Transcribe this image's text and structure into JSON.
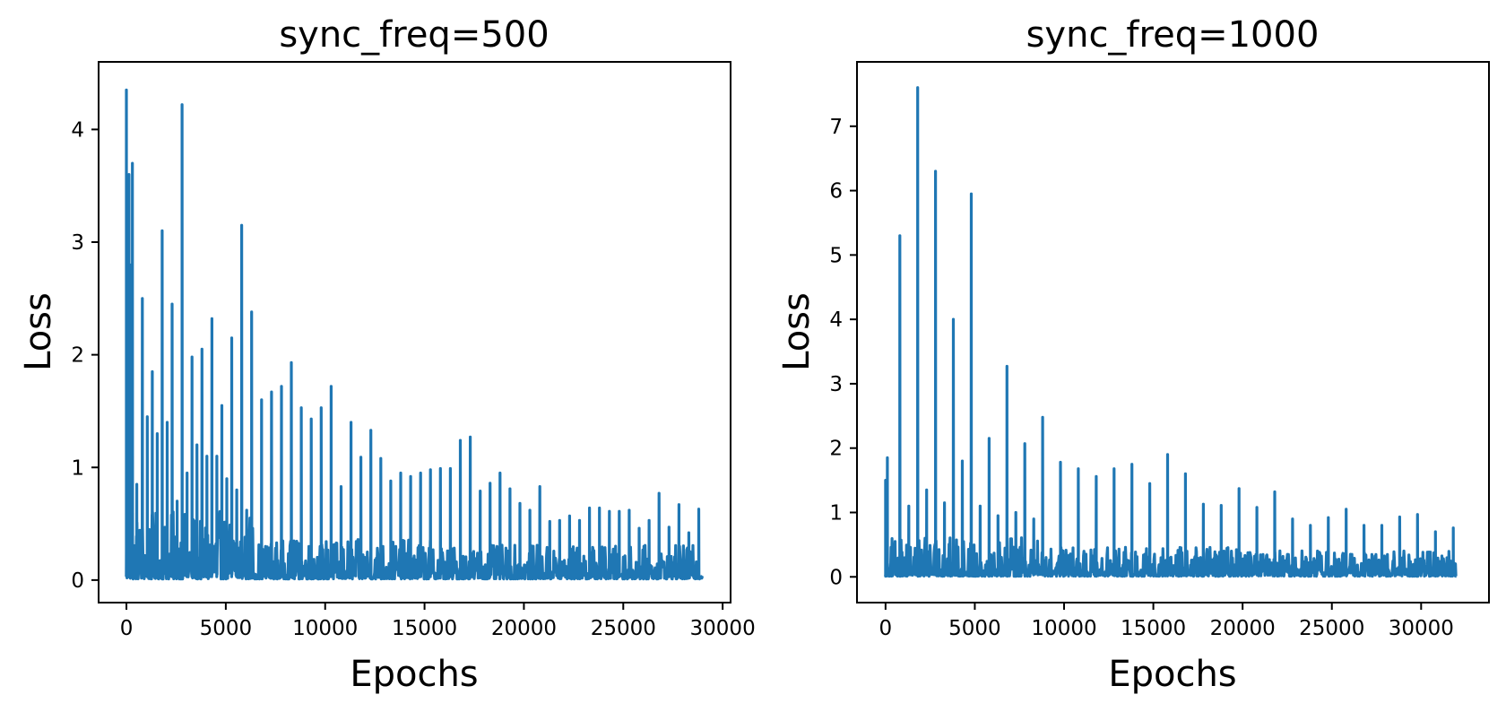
{
  "chart_data": [
    {
      "type": "line",
      "title": "sync_freq=500",
      "xlabel": "Epochs",
      "ylabel": "Loss",
      "xlim": [
        -1400,
        30400
      ],
      "ylim": [
        -0.2,
        4.6
      ],
      "xticks": [
        0,
        5000,
        10000,
        15000,
        20000,
        25000,
        30000
      ],
      "yticks": [
        0,
        1,
        2,
        3,
        4
      ],
      "grid": false,
      "color": "#1f77b4",
      "x_max": 29000,
      "sync_interval": 500,
      "spike_peaks": [
        [
          0,
          4.35
        ],
        [
          130,
          3.6
        ],
        [
          260,
          2.8
        ],
        [
          300,
          3.7
        ],
        [
          520,
          0.85
        ],
        [
          800,
          2.5
        ],
        [
          1050,
          1.45
        ],
        [
          1300,
          1.85
        ],
        [
          1550,
          1.3
        ],
        [
          1800,
          3.1
        ],
        [
          2050,
          1.4
        ],
        [
          2300,
          2.45
        ],
        [
          2550,
          0.7
        ],
        [
          2800,
          4.22
        ],
        [
          3050,
          0.95
        ],
        [
          3300,
          1.98
        ],
        [
          3550,
          1.2
        ],
        [
          3800,
          2.05
        ],
        [
          4050,
          1.1
        ],
        [
          4300,
          2.32
        ],
        [
          4550,
          1.1
        ],
        [
          4800,
          1.55
        ],
        [
          5050,
          0.9
        ],
        [
          5300,
          2.15
        ],
        [
          5550,
          0.8
        ],
        [
          5800,
          3.15
        ],
        [
          6050,
          0.62
        ],
        [
          6300,
          2.38
        ],
        [
          6800,
          1.6
        ],
        [
          7300,
          1.67
        ],
        [
          7800,
          1.72
        ],
        [
          8300,
          1.93
        ],
        [
          8800,
          1.53
        ],
        [
          9300,
          1.43
        ],
        [
          9800,
          1.53
        ],
        [
          10300,
          1.72
        ],
        [
          10800,
          0.83
        ],
        [
          11300,
          1.4
        ],
        [
          11800,
          1.09
        ],
        [
          12300,
          1.33
        ],
        [
          12800,
          1.08
        ],
        [
          13300,
          0.88
        ],
        [
          13800,
          0.95
        ],
        [
          14300,
          0.92
        ],
        [
          14800,
          0.95
        ],
        [
          15300,
          0.98
        ],
        [
          15800,
          0.99
        ],
        [
          16300,
          0.99
        ],
        [
          16800,
          1.24
        ],
        [
          17300,
          1.27
        ],
        [
          17800,
          0.79
        ],
        [
          18300,
          0.86
        ],
        [
          18800,
          0.95
        ],
        [
          19300,
          0.81
        ],
        [
          19800,
          0.68
        ],
        [
          20300,
          0.62
        ],
        [
          20800,
          0.83
        ],
        [
          21300,
          0.52
        ],
        [
          21800,
          0.53
        ],
        [
          22300,
          0.57
        ],
        [
          22800,
          0.53
        ],
        [
          23300,
          0.64
        ],
        [
          23800,
          0.64
        ],
        [
          24300,
          0.61
        ],
        [
          24800,
          0.61
        ],
        [
          25300,
          0.62
        ],
        [
          25800,
          0.46
        ],
        [
          26300,
          0.53
        ],
        [
          26800,
          0.77
        ],
        [
          27300,
          0.47
        ],
        [
          27800,
          0.67
        ],
        [
          28300,
          0.42
        ],
        [
          28800,
          0.63
        ]
      ],
      "noise_bands": [
        [
          0,
          6400,
          0.6
        ],
        [
          6400,
          16000,
          0.35
        ],
        [
          16000,
          29000,
          0.3
        ]
      ]
    },
    {
      "type": "line",
      "title": "sync_freq=1000",
      "xlabel": "Epochs",
      "ylabel": "Loss",
      "xlim": [
        -1600,
        33800
      ],
      "ylim": [
        -0.4,
        8.0
      ],
      "xticks": [
        0,
        5000,
        10000,
        15000,
        20000,
        25000,
        30000
      ],
      "yticks": [
        0,
        1,
        2,
        3,
        4,
        5,
        6,
        7
      ],
      "grid": false,
      "color": "#1f77b4",
      "x_max": 32000,
      "sync_interval": 1000,
      "spike_peaks": [
        [
          0,
          1.5
        ],
        [
          100,
          1.85
        ],
        [
          800,
          5.3
        ],
        [
          1300,
          1.1
        ],
        [
          1800,
          7.6
        ],
        [
          2300,
          1.35
        ],
        [
          2800,
          6.3
        ],
        [
          3300,
          1.15
        ],
        [
          3800,
          4.0
        ],
        [
          4300,
          1.8
        ],
        [
          4800,
          5.95
        ],
        [
          5300,
          1.1
        ],
        [
          5800,
          2.15
        ],
        [
          6300,
          0.95
        ],
        [
          6800,
          3.27
        ],
        [
          7300,
          1.0
        ],
        [
          7800,
          2.07
        ],
        [
          8300,
          0.9
        ],
        [
          8800,
          2.48
        ],
        [
          9800,
          1.78
        ],
        [
          10800,
          1.68
        ],
        [
          11800,
          1.56
        ],
        [
          12800,
          1.68
        ],
        [
          13800,
          1.75
        ],
        [
          14800,
          1.45
        ],
        [
          15800,
          1.9
        ],
        [
          16800,
          1.6
        ],
        [
          17800,
          1.13
        ],
        [
          18800,
          1.11
        ],
        [
          19800,
          1.37
        ],
        [
          20800,
          1.08
        ],
        [
          21800,
          1.32
        ],
        [
          22800,
          0.9
        ],
        [
          23800,
          0.8
        ],
        [
          24800,
          0.92
        ],
        [
          25800,
          1.05
        ],
        [
          26800,
          0.8
        ],
        [
          27800,
          0.8
        ],
        [
          28800,
          0.93
        ],
        [
          29800,
          0.97
        ],
        [
          30800,
          0.7
        ],
        [
          31800,
          0.76
        ]
      ],
      "noise_bands": [
        [
          0,
          9000,
          0.6
        ],
        [
          9000,
          20000,
          0.45
        ],
        [
          20000,
          32000,
          0.4
        ]
      ]
    }
  ]
}
